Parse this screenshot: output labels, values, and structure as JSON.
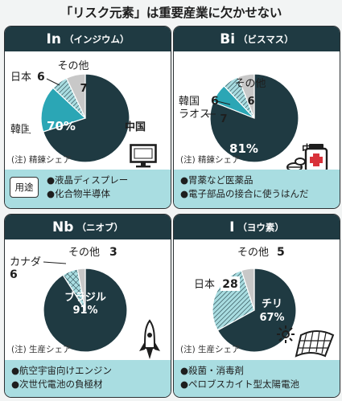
{
  "title": "「リスク元素」は重要産業に欠かせない",
  "use_tag": "用途",
  "colors": {
    "dark": "#1f3a42",
    "teal": "#2ba6b5",
    "light_teal": "#a9dde1",
    "gray": "#c8c8c8"
  },
  "panels": [
    {
      "symbol": "In",
      "name": "（インジウム）",
      "source": "(注) 精錬シェア",
      "uses": [
        "●液晶ディスプレー",
        "●化合物半導体"
      ],
      "icon": "monitor-icon"
    },
    {
      "symbol": "Bi",
      "name": "（ビスマス）",
      "source": "(注) 精錬シェア",
      "uses": [
        "●胃薬など医薬品",
        "●電子部品の接合に使うはんだ"
      ],
      "icon": "medicine-icon"
    },
    {
      "symbol": "Nb",
      "name": "（ニオブ）",
      "source": "(注) 生産シェア",
      "uses": [
        "●航空宇宙向けエンジン",
        "●次世代電池の負極材"
      ],
      "icon": "rocket-icon"
    },
    {
      "symbol": "I",
      "name": "（ヨウ素）",
      "source": "(注) 生産シェア",
      "uses": [
        "●殺菌・消毒剤",
        "●ペロブスカイト型太陽電池"
      ],
      "icon": "solar-panel-icon"
    }
  ],
  "chart_data": [
    {
      "type": "pie",
      "title": "In（インジウム）",
      "unit": "%",
      "slices": [
        {
          "label": "中国",
          "value": 70
        },
        {
          "label": "韓国",
          "value": 17
        },
        {
          "label": "日本",
          "value": 6
        },
        {
          "label": "その他",
          "value": 7
        }
      ]
    },
    {
      "type": "pie",
      "title": "Bi（ビスマス）",
      "unit": "%",
      "slices": [
        {
          "label": "中国",
          "value": 81
        },
        {
          "label": "ラオス",
          "value": 7
        },
        {
          "label": "韓国",
          "value": 6
        },
        {
          "label": "その他",
          "value": 6
        }
      ]
    },
    {
      "type": "pie",
      "title": "Nb（ニオブ）",
      "unit": "%",
      "slices": [
        {
          "label": "ブラジル",
          "value": 91
        },
        {
          "label": "カナダ",
          "value": 6
        },
        {
          "label": "その他",
          "value": 3
        }
      ]
    },
    {
      "type": "pie",
      "title": "I（ヨウ素）",
      "unit": "%",
      "slices": [
        {
          "label": "チリ",
          "value": 67
        },
        {
          "label": "日本",
          "value": 28
        },
        {
          "label": "その他",
          "value": 5
        }
      ]
    }
  ]
}
